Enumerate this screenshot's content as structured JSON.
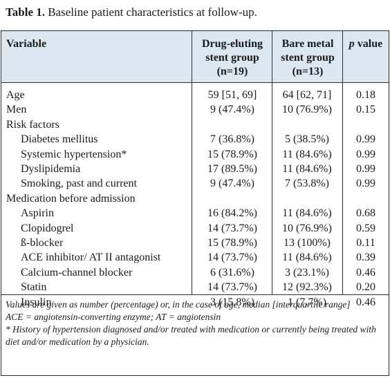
{
  "caption": {
    "label": "Table 1.",
    "text": " Baseline patient characteristics at follow-up."
  },
  "header": {
    "variable": "Variable",
    "group1": [
      "Drug-eluting",
      "stent group",
      "(n=19)"
    ],
    "group2": [
      "Bare metal",
      "stent group",
      "(n=13)"
    ],
    "pvalue_p": "p",
    "pvalue_rest": " value"
  },
  "rows": [
    {
      "label": "Age",
      "indent": false,
      "des": "59 [51, 69]",
      "bms": "64 [62, 71]",
      "p": "0.18"
    },
    {
      "label": "Men",
      "indent": false,
      "des": "9 (47.4%)",
      "bms": "10 (76.9%)",
      "p": "0.15"
    },
    {
      "label": "Risk factors",
      "indent": false,
      "des": "",
      "bms": "",
      "p": ""
    },
    {
      "label": "Diabetes mellitus",
      "indent": true,
      "des": "7 (36.8%)",
      "bms": "5 (38.5%)",
      "p": "0.99"
    },
    {
      "label": "Systemic hypertension*",
      "indent": true,
      "des": "15 (78.9%)",
      "bms": "11 (84.6%)",
      "p": "0.99"
    },
    {
      "label": "Dyslipidemia",
      "indent": true,
      "des": "17 (89.5%)",
      "bms": "11 (84.6%)",
      "p": "0.99"
    },
    {
      "label": "Smoking, past and current",
      "indent": true,
      "des": "9 (47.4%)",
      "bms": "7 (53.8%)",
      "p": "0.99"
    },
    {
      "label": "Medication before admission",
      "indent": false,
      "des": "",
      "bms": "",
      "p": ""
    },
    {
      "label": "Aspirin",
      "indent": true,
      "des": "16 (84.2%)",
      "bms": "11 (84.6%)",
      "p": "0.68"
    },
    {
      "label": "Clopidogrel",
      "indent": true,
      "des": "14 (73.7%)",
      "bms": "10 (76.9%)",
      "p": "0.59"
    },
    {
      "label": "ß-blocker",
      "indent": true,
      "des": "15 (78.9%)",
      "bms": "13 (100%)",
      "p": "0.11"
    },
    {
      "label": "ACE inhibitor/ AT II antagonist",
      "indent": true,
      "des": "14 (73.7%)",
      "bms": "11 (84.6%)",
      "p": "0.39"
    },
    {
      "label": "Calcium-channel blocker",
      "indent": true,
      "des": "6 (31.6%)",
      "bms": "3 (23.1%)",
      "p": "0.46"
    },
    {
      "label": "Statin",
      "indent": true,
      "des": "14 (73.7%)",
      "bms": "12 (92.3%)",
      "p": "0.20"
    },
    {
      "label": "Insulin",
      "indent": true,
      "des": "3 (15.8%)",
      "bms": "1 (7.7%)",
      "p": "0.46"
    }
  ],
  "notes": {
    "line1": "Values are given as number (percentage) or, in the case of age, median [interquartile range]",
    "line2": "ACE = angiotensin-converting enzyme; AT = angiotensin",
    "line3": "* History of hypertension diagnosed and/or treated with medication or currently being treated with diet and/or medication by a physician."
  },
  "colors": {
    "header_bg": "#dbe7f1",
    "border": "#2a2a2a"
  }
}
